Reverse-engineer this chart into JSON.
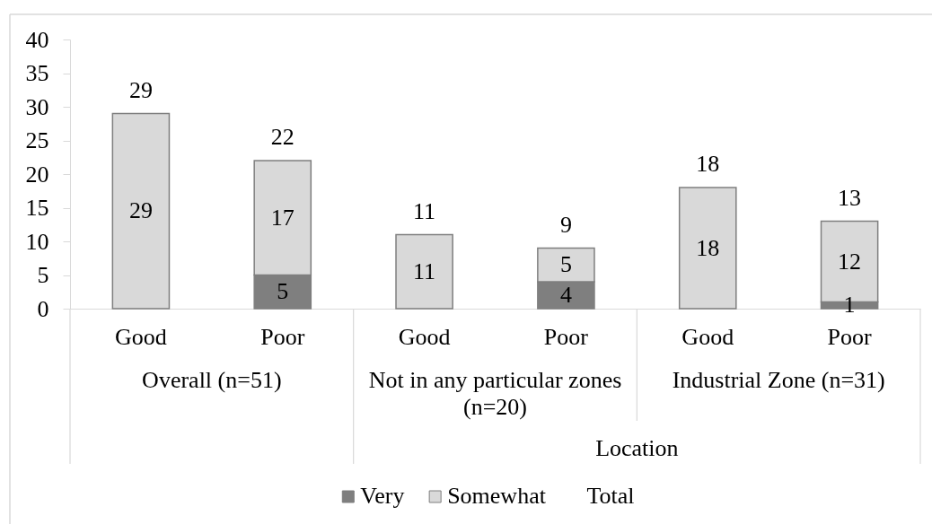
{
  "chart_data": {
    "type": "bar",
    "stacked": true,
    "categories": [
      "Good",
      "Poor",
      "Good",
      "Poor",
      "Good",
      "Poor"
    ],
    "series": [
      {
        "name": "Very",
        "color": "#7f7f7f",
        "values": [
          null,
          5,
          null,
          4,
          null,
          1
        ]
      },
      {
        "name": "Somewhat",
        "color": "#d9d9d9",
        "values": [
          29,
          17,
          11,
          5,
          18,
          12
        ]
      },
      {
        "name": "Total",
        "values": [
          null,
          null,
          null,
          null,
          null,
          null
        ]
      }
    ],
    "totals": [
      "29",
      "22",
      "11",
      "9",
      "18",
      "13"
    ],
    "data_labels": true,
    "ylim": [
      0,
      40
    ],
    "yticks": [
      0,
      5,
      10,
      15,
      20,
      25,
      30,
      35,
      40
    ],
    "grid": false,
    "legend": "bottom",
    "xlabel": "Location",
    "annotations": [
      "Overall (n=51)",
      "Not in any particular zones (n=20)",
      "Industrial Zone (n=31)"
    ]
  }
}
